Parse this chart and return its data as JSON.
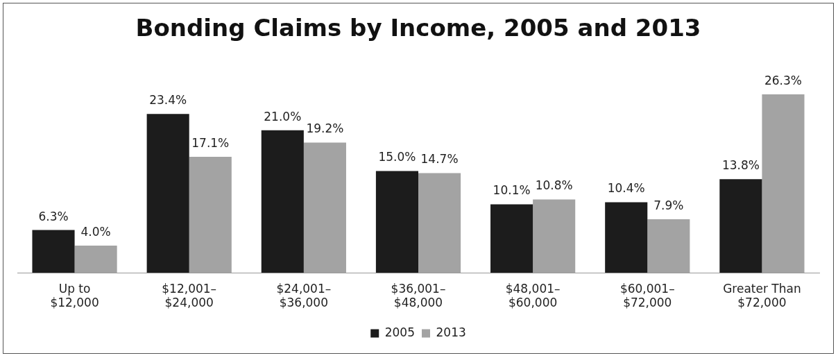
{
  "chart_data": {
    "type": "bar",
    "title": "Bonding Claims by Income, 2005 and 2013",
    "categories": [
      "Up to\n$12,000",
      "$12,001–\n$24,000",
      "$24,001–\n$36,000",
      "$36,001–\n$48,000",
      "$48,001–\n$60,000",
      "$60,001–\n$72,000",
      "Greater Than\n$72,000"
    ],
    "series": [
      {
        "name": "2005",
        "color": "#1c1c1c",
        "values": [
          6.3,
          23.4,
          21.0,
          15.0,
          10.1,
          10.4,
          13.8
        ],
        "value_labels": [
          "6.3%",
          "23.4%",
          "21.0%",
          "15.0%",
          "10.1%",
          "10.4%",
          "13.8%"
        ]
      },
      {
        "name": "2013",
        "color": "#a3a3a3",
        "values": [
          4.0,
          17.1,
          19.2,
          14.7,
          10.8,
          7.9,
          26.3
        ],
        "value_labels": [
          "4.0%",
          "17.1%",
          "19.2%",
          "14.7%",
          "10.8%",
          "7.9%",
          "26.3%"
        ]
      }
    ],
    "legend": "bottom",
    "grid": false
  }
}
